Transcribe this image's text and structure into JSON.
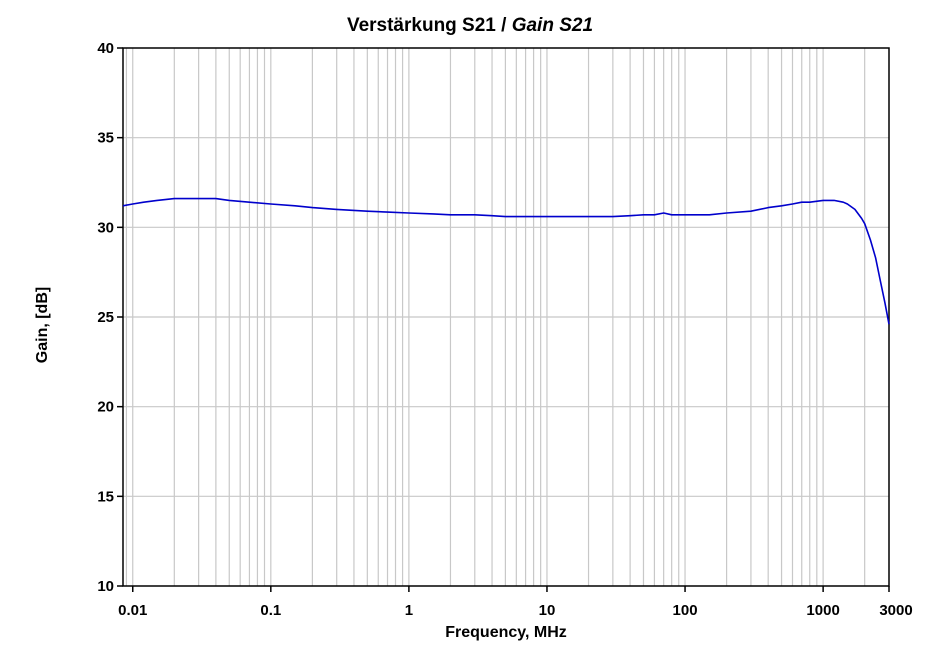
{
  "chart_data": {
    "type": "line",
    "title": "Verstärkung S21 / ",
    "title_italic": "Gain S21",
    "xlabel": "Frequency, MHz",
    "ylabel": "Gain, [dB]",
    "x_scale": "log",
    "xlim": [
      0.0085,
      3000
    ],
    "ylim": [
      10,
      40
    ],
    "x_ticks": [
      {
        "value": 0.01,
        "label": "0.01"
      },
      {
        "value": 0.1,
        "label": "0.1"
      },
      {
        "value": 1,
        "label": "1"
      },
      {
        "value": 10,
        "label": "10"
      },
      {
        "value": 100,
        "label": "100"
      },
      {
        "value": 1000,
        "label": "1000"
      },
      {
        "value": 3000,
        "label": "3000"
      }
    ],
    "y_ticks": [
      {
        "value": 10,
        "label": "10"
      },
      {
        "value": 15,
        "label": "15"
      },
      {
        "value": 20,
        "label": "20"
      },
      {
        "value": 25,
        "label": "25"
      },
      {
        "value": 30,
        "label": "30"
      },
      {
        "value": 35,
        "label": "35"
      },
      {
        "value": 40,
        "label": "40"
      }
    ],
    "grid": true,
    "series": [
      {
        "color": "#0000cc",
        "x": [
          0.0085,
          0.01,
          0.012,
          0.015,
          0.02,
          0.03,
          0.04,
          0.05,
          0.07,
          0.1,
          0.15,
          0.2,
          0.3,
          0.5,
          0.7,
          1,
          1.5,
          2,
          3,
          4,
          5,
          7,
          10,
          15,
          20,
          30,
          40,
          50,
          60,
          70,
          80,
          100,
          150,
          200,
          300,
          400,
          500,
          600,
          700,
          800,
          1000,
          1200,
          1400,
          1500,
          1700,
          1900,
          2000,
          2200,
          2400,
          2600,
          2800,
          3000
        ],
        "y": [
          31.2,
          31.3,
          31.4,
          31.5,
          31.6,
          31.6,
          31.6,
          31.5,
          31.4,
          31.3,
          31.2,
          31.1,
          31.0,
          30.9,
          30.85,
          30.8,
          30.75,
          30.7,
          30.7,
          30.65,
          30.6,
          30.6,
          30.6,
          30.6,
          30.6,
          30.6,
          30.65,
          30.7,
          30.7,
          30.8,
          30.7,
          30.7,
          30.7,
          30.8,
          30.9,
          31.1,
          31.2,
          31.3,
          31.4,
          31.4,
          31.5,
          31.5,
          31.4,
          31.3,
          31.0,
          30.5,
          30.2,
          29.3,
          28.3,
          27.0,
          25.8,
          24.6
        ]
      }
    ]
  }
}
